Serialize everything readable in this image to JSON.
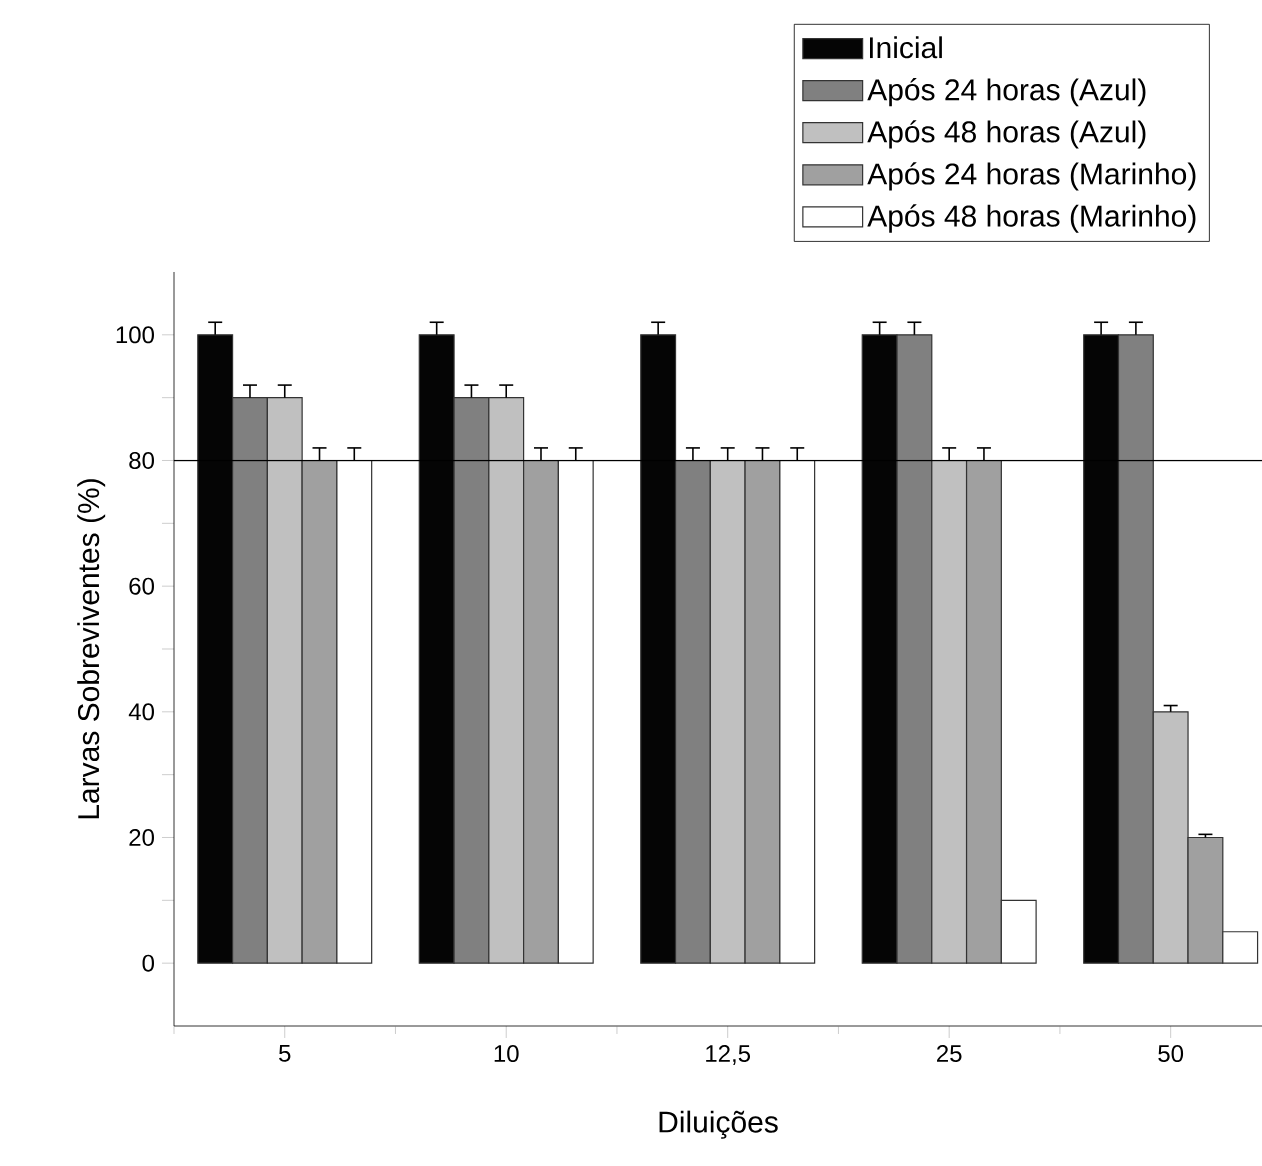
{
  "chart_data": {
    "type": "bar",
    "xlabel": "Diluições",
    "ylabel": "Larvas Sobreviventes (%)",
    "categories": [
      "5",
      "10",
      "12,5",
      "25",
      "50"
    ],
    "ylim": [
      -10,
      110
    ],
    "yticks": [
      0,
      {
        "value": 10,
        "label": null
      },
      20,
      {
        "value": 30,
        "label": null
      },
      40,
      {
        "value": 50,
        "label": null
      },
      60,
      {
        "value": 70,
        "label": null
      },
      80,
      {
        "value": 90,
        "label": null
      },
      100
    ],
    "legend": "top right",
    "ref_lines": [
      {
        "axis": "y",
        "value": 80,
        "color": "#000000"
      }
    ],
    "series": [
      {
        "name": "Inicial",
        "color": "#050505",
        "values": [
          100,
          100,
          100,
          100,
          100
        ],
        "errors": [
          2,
          2,
          2,
          2,
          2
        ]
      },
      {
        "name": "Após 24 horas (Azul)",
        "color": "#808080",
        "values": [
          90,
          90,
          80,
          100,
          100
        ],
        "errors": [
          2,
          2,
          2,
          2,
          2
        ]
      },
      {
        "name": "Após 48 horas  (Azul)",
        "color": "#c0c0c0",
        "values": [
          90,
          90,
          80,
          80,
          40
        ],
        "errors": [
          2,
          2,
          2,
          2,
          1
        ]
      },
      {
        "name": "Após 24 horas (Marinho)",
        "color": "#a0a0a0",
        "values": [
          80,
          80,
          80,
          80,
          20
        ],
        "errors": [
          2,
          2,
          2,
          2,
          0.5
        ]
      },
      {
        "name": "Após 48 horas (Marinho)",
        "color": "#ffffff",
        "values": [
          80,
          80,
          80,
          10,
          5
        ],
        "errors": [
          2,
          2,
          2,
          null,
          null
        ]
      }
    ]
  }
}
